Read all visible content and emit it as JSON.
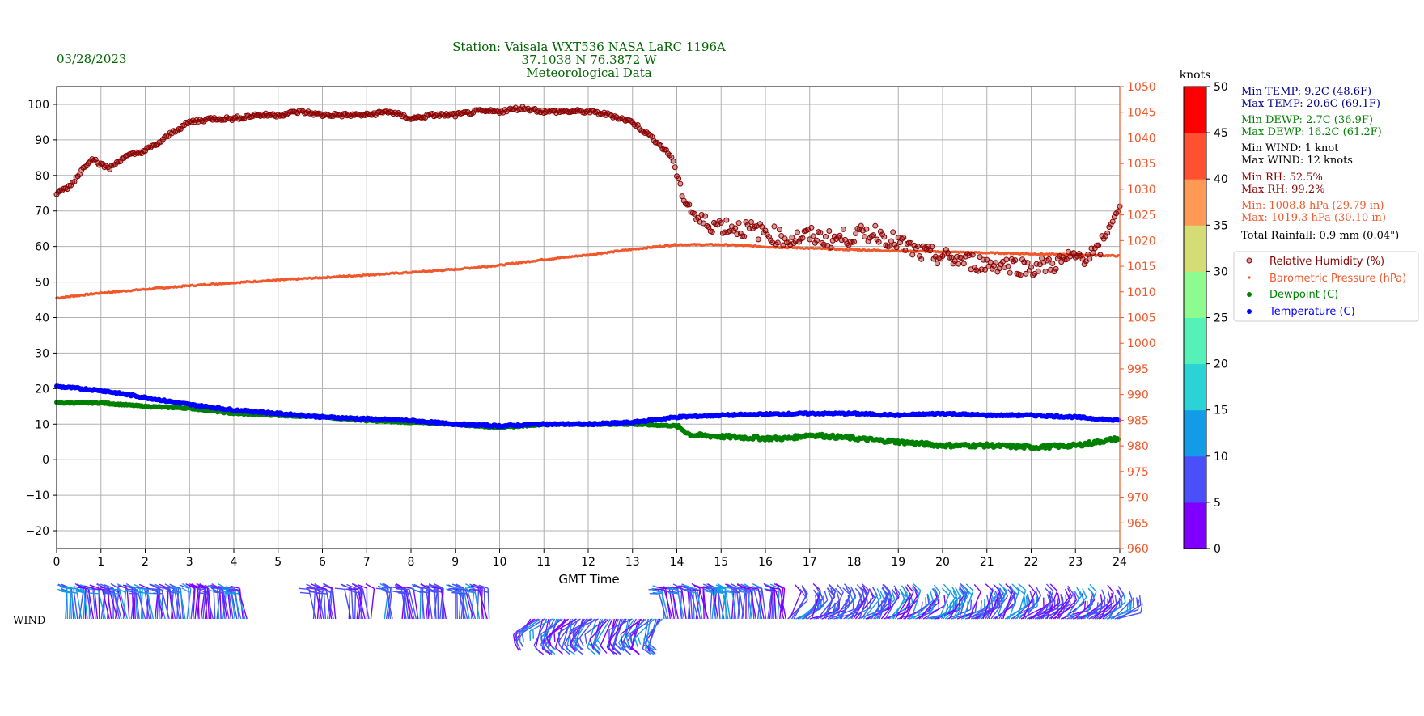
{
  "header": {
    "date": "03/28/2023",
    "title_lines": [
      "Station:  Vaisala WXT536  NASA LaRC 1196A",
      "37.1038 N 76.3872 W",
      "Meteorological Data"
    ]
  },
  "colors": {
    "humidity": "#8b0000",
    "pressure": "#f0582c",
    "dewpoint": "#008000",
    "temperature": "#0000ff",
    "title": "#006400",
    "stats_temp": "#00008b",
    "stats_dewp": "#008000",
    "stats_wind": "#000000",
    "stats_rh": "#8b0000",
    "stats_press": "#f0582c"
  },
  "stats": {
    "min_temp": "Min TEMP: 9.2C (48.6F)",
    "max_temp": "Max TEMP: 20.6C (69.1F)",
    "min_dewp": "Min DEWP: 2.7C (36.9F)",
    "max_dewp": "Max DEWP: 16.2C (61.2F)",
    "min_wind": "Min WIND: 1 knot",
    "max_wind": "Max WIND: 12 knots",
    "min_rh": "Min RH: 52.5%",
    "max_rh": "Max RH: 99.2%",
    "min_press": "Min: 1008.8 hPa (29.79 in)",
    "max_press": "Max: 1019.3 hPa (30.10 in)",
    "rain": "Total Rainfall: 0.9 mm (0.04\")"
  },
  "wind_label": "WIND",
  "colorbar": {
    "label": "knots",
    "ticks": [
      "0",
      "5",
      "10",
      "15",
      "20",
      "25",
      "30",
      "35",
      "40",
      "45",
      "50"
    ],
    "colors": [
      "#7f00ff",
      "#4a4ff9",
      "#129ce8",
      "#2ad3d6",
      "#54f2b8",
      "#8dfb8d",
      "#d4dd74",
      "#ff9a56",
      "#ff5030",
      "#ff0000"
    ]
  },
  "chart_data": {
    "type": "scatter",
    "xlabel": "GMT Time",
    "xlim": [
      0,
      24
    ],
    "x_ticks": [
      "0",
      "1",
      "2",
      "3",
      "4",
      "5",
      "6",
      "7",
      "8",
      "9",
      "10",
      "11",
      "12",
      "13",
      "14",
      "15",
      "16",
      "17",
      "18",
      "19",
      "20",
      "21",
      "22",
      "23",
      "24"
    ],
    "ylim": [
      -25,
      105
    ],
    "y_ticks": [
      "−20",
      "−10",
      "0",
      "10",
      "20",
      "30",
      "40",
      "50",
      "60",
      "70",
      "80",
      "90",
      "100"
    ],
    "y2lim": [
      960,
      1050
    ],
    "y2_ticks": [
      "960",
      "965",
      "970",
      "975",
      "980",
      "985",
      "990",
      "995",
      "1000",
      "1005",
      "1010",
      "1015",
      "1020",
      "1025",
      "1030",
      "1035",
      "1040",
      "1045",
      "1050"
    ],
    "grid": true,
    "legend_position": "right",
    "series": [
      {
        "name": "Relative Humidity (%)",
        "axis": "left",
        "marker": "open-circle",
        "x": [
          0,
          0.3,
          0.6,
          0.8,
          1.0,
          1.2,
          1.5,
          2.0,
          2.3,
          2.6,
          3.0,
          3.5,
          4.0,
          4.5,
          5.0,
          5.5,
          6.0,
          6.5,
          7.0,
          7.5,
          8.0,
          8.5,
          9.0,
          9.5,
          10.0,
          10.5,
          11.0,
          11.5,
          12.0,
          12.5,
          13.0,
          13.5,
          13.9,
          14.0,
          14.2,
          14.5,
          15.0,
          15.5,
          16.0,
          16.5,
          17.0,
          17.5,
          18.0,
          18.5,
          19.0,
          19.5,
          20.0,
          20.5,
          21.0,
          21.5,
          22.0,
          22.5,
          23.0,
          23.5,
          23.9,
          24.0
        ],
        "y": [
          75,
          77,
          82,
          85,
          83,
          82,
          85,
          87,
          89,
          92,
          95,
          96,
          96,
          97,
          97,
          98,
          97,
          97,
          97,
          98,
          96,
          97,
          97,
          98,
          98,
          99,
          98,
          98,
          98,
          97,
          95,
          90,
          85,
          80,
          73,
          67,
          66,
          65,
          64,
          62,
          63,
          62,
          63,
          64,
          61,
          58,
          57,
          56,
          55,
          55,
          54,
          55,
          57,
          58,
          69,
          71
        ]
      },
      {
        "name": "Barometric Pressure (hPa)",
        "axis": "right",
        "marker": "dot",
        "x": [
          0,
          1,
          2,
          3,
          4,
          5,
          6,
          7,
          8,
          9,
          10,
          11,
          12,
          13,
          14,
          15,
          16,
          17,
          18,
          19,
          20,
          21,
          22,
          23,
          24
        ],
        "y": [
          1008.8,
          1009.8,
          1010.5,
          1011.2,
          1011.8,
          1012.3,
          1012.8,
          1013.3,
          1013.8,
          1014.4,
          1015.2,
          1016.3,
          1017.2,
          1018.3,
          1019.2,
          1019.2,
          1018.8,
          1018.5,
          1018.2,
          1018.0,
          1017.8,
          1017.6,
          1017.4,
          1017.2,
          1017.0
        ]
      },
      {
        "name": "Dewpoint (C)",
        "axis": "left",
        "marker": "dot",
        "x": [
          0,
          1,
          2,
          3,
          4,
          5,
          6,
          7,
          8,
          9,
          10,
          11,
          12,
          13,
          14,
          14.3,
          15,
          16,
          16.5,
          17,
          18,
          19,
          20,
          21,
          22,
          23,
          24
        ],
        "y": [
          16,
          16,
          15,
          14.5,
          13,
          12.5,
          12,
          11,
          10.5,
          10,
          9,
          10,
          10,
          10,
          9.5,
          7,
          6.5,
          6,
          6,
          7,
          6,
          5,
          4,
          4,
          3.5,
          4,
          6
        ]
      },
      {
        "name": "Temperature (C)",
        "axis": "left",
        "marker": "dot",
        "x": [
          0,
          1,
          2,
          3,
          4,
          5,
          6,
          7,
          8,
          9,
          10,
          11,
          12,
          13,
          14,
          15,
          16,
          17,
          18,
          19,
          20,
          21,
          22,
          23,
          24
        ],
        "y": [
          20.6,
          19.5,
          17.5,
          15.5,
          14,
          13,
          12,
          11.5,
          11,
          10,
          9.5,
          10,
          10,
          10.5,
          12,
          12.5,
          12.8,
          13,
          13,
          12.5,
          13,
          12.5,
          12.5,
          12,
          11
        ]
      }
    ]
  }
}
